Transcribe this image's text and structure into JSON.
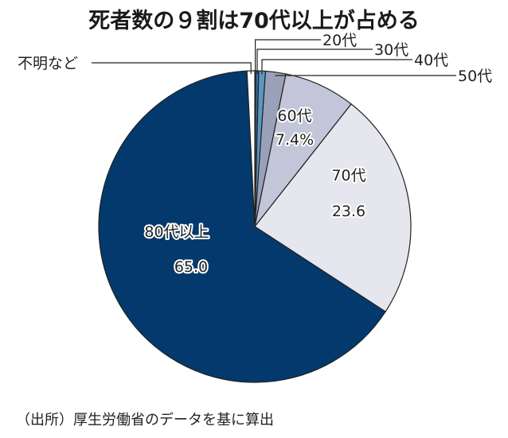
{
  "title": "死者数の９割は70代以上が占める",
  "source": "（出所）厚生労働省のデータを基に算出",
  "chart_data": {
    "type": "pie",
    "title": "死者数の９割は70代以上が占める",
    "unit": "%",
    "start_angle": "12 o'clock, clockwise",
    "slices": [
      {
        "label": "20代",
        "value": 0.1,
        "color": "#2f4f7a",
        "label_style": "leader"
      },
      {
        "label": "30代",
        "value": 0.3,
        "color": "#3a6e9a",
        "label_style": "leader"
      },
      {
        "label": "40代",
        "value": 0.7,
        "color": "#5d96c2",
        "label_style": "leader"
      },
      {
        "label": "50代",
        "value": 2.1,
        "color": "#9aa0b8",
        "label_style": "leader"
      },
      {
        "label": "60代",
        "value": 7.4,
        "display": "7.4%",
        "color": "#c3c6d8",
        "label_style": "inside"
      },
      {
        "label": "70代",
        "value": 23.6,
        "display": "23.6",
        "color": "#e6e7ee",
        "label_style": "inside"
      },
      {
        "label": "80代以上",
        "value": 65.0,
        "display": "65.0",
        "color": "#03396c",
        "label_style": "inside"
      },
      {
        "label": "不明など",
        "value": 0.8,
        "color": "#ffffff",
        "label_style": "leader"
      }
    ]
  }
}
